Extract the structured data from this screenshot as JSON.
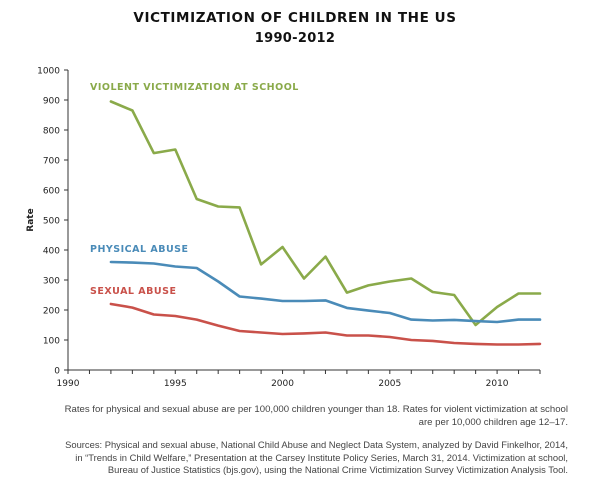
{
  "title": "VICTIMIZATION OF CHILDREN IN THE US",
  "subtitle": "1990-2012",
  "note_lines": [
    "Rates for physical and sexual abuse are per 100,000 children younger than 18. Rates for violent victimization at school",
    "are per 10,000 children age 12–17."
  ],
  "source_lines": [
    "Sources: Physical and sexual abuse, National Child Abuse and Neglect Data System, analyzed by David Finkelhor, 2014,",
    "in “Trends in Child Welfare,” Presentation at the Carsey Institute Policy Series, March 31, 2014. Victimization at school,",
    "Bureau of Justice Statistics (bjs.gov), using the National Crime Victimization Survey Victimization Analysis Tool."
  ],
  "chart_data": {
    "type": "line",
    "title": "VICTIMIZATION OF CHILDREN IN THE US",
    "subtitle": "1990-2012",
    "xlabel": "",
    "ylabel": "Rate",
    "xlim": [
      1990,
      2012
    ],
    "ylim": [
      0,
      1000
    ],
    "xticks": [
      1990,
      1995,
      2000,
      2005,
      2010
    ],
    "yticks": [
      0,
      100,
      200,
      300,
      400,
      500,
      600,
      700,
      800,
      900,
      1000
    ],
    "grid": false,
    "legend": "inline labels",
    "series": [
      {
        "name": "VIOLENT VICTIMIZATION AT SCHOOL",
        "color": "#8aaa4a",
        "x": [
          1992,
          1993,
          1994,
          1995,
          1996,
          1997,
          1998,
          1999,
          2000,
          2001,
          2002,
          2003,
          2004,
          2005,
          2006,
          2007,
          2008,
          2009,
          2010,
          2011,
          2012
        ],
        "values": [
          895,
          865,
          723,
          735,
          570,
          545,
          542,
          352,
          410,
          305,
          378,
          258,
          282,
          295,
          305,
          260,
          250,
          150,
          210,
          255,
          255
        ]
      },
      {
        "name": "PHYSICAL ABUSE",
        "color": "#4a8bb8",
        "x": [
          1992,
          1993,
          1994,
          1995,
          1996,
          1997,
          1998,
          1999,
          2000,
          2001,
          2002,
          2003,
          2004,
          2005,
          2006,
          2007,
          2008,
          2009,
          2010,
          2011,
          2012
        ],
        "values": [
          360,
          358,
          355,
          345,
          340,
          295,
          245,
          238,
          230,
          230,
          232,
          207,
          198,
          190,
          168,
          165,
          167,
          163,
          160,
          168,
          168
        ]
      },
      {
        "name": "SEXUAL ABUSE",
        "color": "#c9514a",
        "x": [
          1992,
          1993,
          1994,
          1995,
          1996,
          1997,
          1998,
          1999,
          2000,
          2001,
          2002,
          2003,
          2004,
          2005,
          2006,
          2007,
          2008,
          2009,
          2010,
          2011,
          2012
        ],
        "values": [
          220,
          208,
          185,
          180,
          168,
          148,
          130,
          125,
          120,
          122,
          125,
          115,
          115,
          110,
          100,
          97,
          90,
          87,
          85,
          85,
          87
        ]
      }
    ]
  }
}
